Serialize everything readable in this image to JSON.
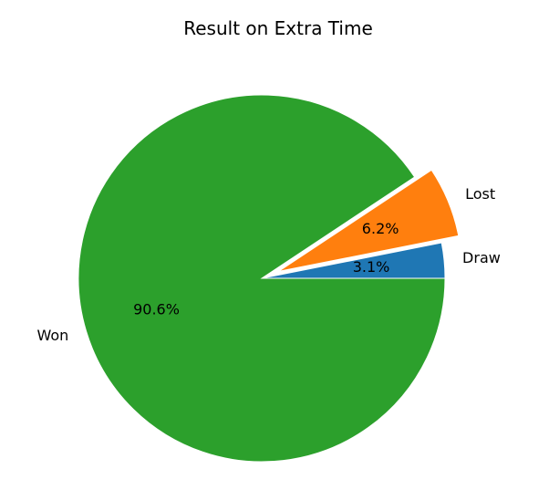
{
  "chart_data": {
    "type": "pie",
    "title": "Result on Extra Time",
    "slices": [
      {
        "label": "Draw",
        "value": 3.1,
        "pct_label": "3.1%",
        "color": "#1f77b4",
        "explode": 0.0
      },
      {
        "label": "Lost",
        "value": 6.2,
        "pct_label": "6.2%",
        "color": "#ff7f0e",
        "explode": 0.1
      },
      {
        "label": "Won",
        "value": 90.6,
        "pct_label": "90.6%",
        "color": "#2ca02c",
        "explode": 0.0
      }
    ],
    "start_angle_deg": 0,
    "direction": "counterclockwise",
    "legend": "none"
  }
}
